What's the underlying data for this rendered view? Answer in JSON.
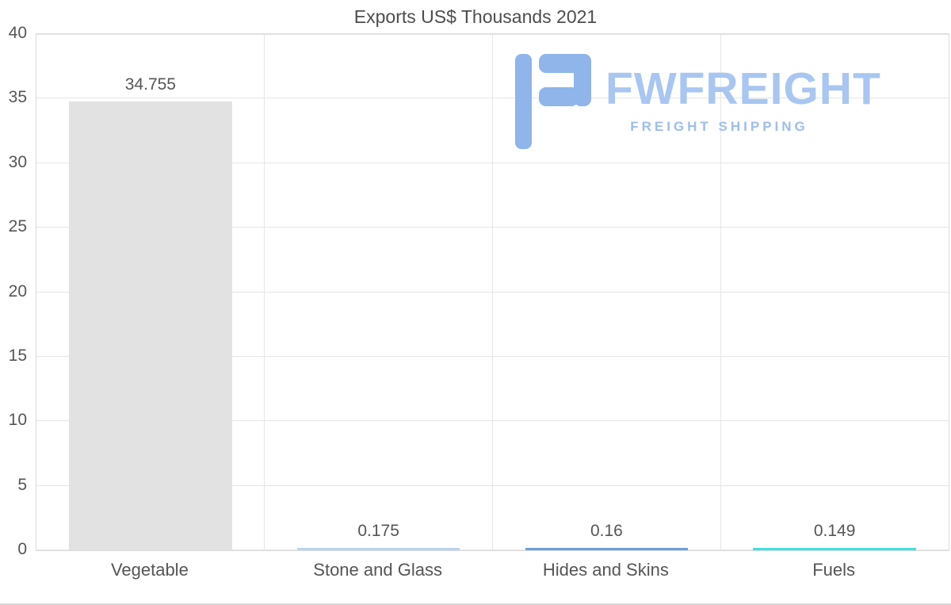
{
  "chart_data": {
    "type": "bar",
    "title": "Exports US$ Thousands 2021",
    "categories": [
      "Vegetable",
      "Stone and Glass",
      "Hides and Skins",
      "Fuels"
    ],
    "values": [
      34.755,
      0.175,
      0.16,
      0.149
    ],
    "value_labels": [
      "34.755",
      "0.175",
      "0.16",
      "0.149"
    ],
    "bar_colors": [
      "#e2e2e2",
      "#b9d3ea",
      "#6b9fd6",
      "#3fdfe0"
    ],
    "xlabel": "",
    "ylabel": "",
    "ylim": [
      0,
      40
    ],
    "ytick_step": 5,
    "yticks": [
      "0",
      "5",
      "10",
      "15",
      "20",
      "25",
      "30",
      "35",
      "40"
    ],
    "grid": "horizontal-and-vertical",
    "legend": "none",
    "bar_width_fraction": 0.715
  },
  "logo": {
    "text": "FWFREIGHT",
    "subtitle": "FREIGHT SHIPPING",
    "text_color": "#a8c6f1",
    "subtitle_color": "#9dbdee",
    "icon_color": "#8fb5ea",
    "icon": "fwfreight-f-glyph"
  },
  "colors": {
    "background": "#ffffff",
    "grid": "#e6e6e6",
    "plot_border": "#dcdcdc",
    "axis_text": "#555555",
    "title_text": "#4d4d4d"
  }
}
